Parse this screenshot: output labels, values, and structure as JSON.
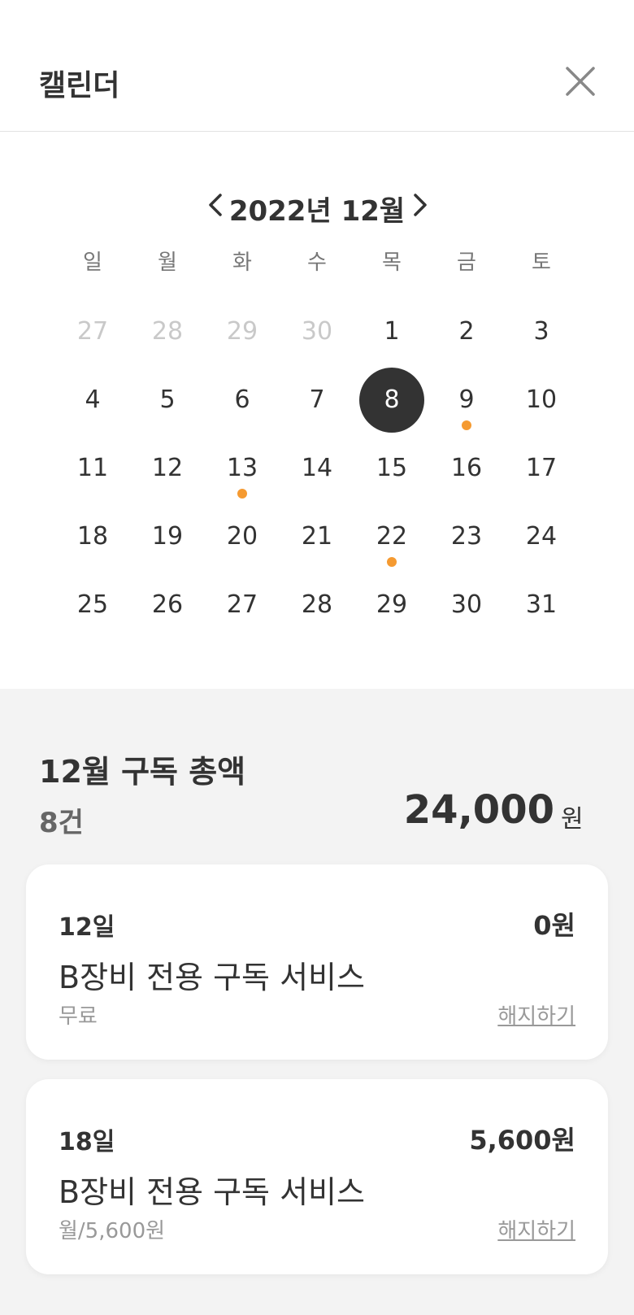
{
  "header": {
    "title": "캘린더"
  },
  "calendar": {
    "month_title": "2022년 12월",
    "weekdays": [
      "일",
      "월",
      "화",
      "수",
      "목",
      "금",
      "토"
    ],
    "weeks": [
      [
        {
          "d": "27",
          "other": true
        },
        {
          "d": "28",
          "other": true
        },
        {
          "d": "29",
          "other": true
        },
        {
          "d": "30",
          "other": true
        },
        {
          "d": "1"
        },
        {
          "d": "2"
        },
        {
          "d": "3"
        }
      ],
      [
        {
          "d": "4"
        },
        {
          "d": "5"
        },
        {
          "d": "6"
        },
        {
          "d": "7"
        },
        {
          "d": "8",
          "selected": true
        },
        {
          "d": "9",
          "dot": true
        },
        {
          "d": "10"
        }
      ],
      [
        {
          "d": "11"
        },
        {
          "d": "12"
        },
        {
          "d": "13",
          "dot": true
        },
        {
          "d": "14"
        },
        {
          "d": "15"
        },
        {
          "d": "16"
        },
        {
          "d": "17"
        }
      ],
      [
        {
          "d": "18"
        },
        {
          "d": "19"
        },
        {
          "d": "20"
        },
        {
          "d": "21"
        },
        {
          "d": "22",
          "dot": true
        },
        {
          "d": "23"
        },
        {
          "d": "24"
        }
      ],
      [
        {
          "d": "25"
        },
        {
          "d": "26"
        },
        {
          "d": "27"
        },
        {
          "d": "28"
        },
        {
          "d": "29"
        },
        {
          "d": "30"
        },
        {
          "d": "31"
        }
      ]
    ],
    "dot_color": "#f59a31",
    "selected_color": "#333333"
  },
  "summary": {
    "title": "12월 구독 총액",
    "count": "8건",
    "amount": "24,000",
    "unit": "원"
  },
  "subscriptions": [
    {
      "day": "12일",
      "price": "0원",
      "name": "B장비 전용 구독 서비스",
      "sub": "무료",
      "cancel": "해지하기"
    },
    {
      "day": "18일",
      "price": "5,600원",
      "name": "B장비 전용 구독 서비스",
      "sub": "월/5,600원",
      "cancel": "해지하기"
    }
  ]
}
